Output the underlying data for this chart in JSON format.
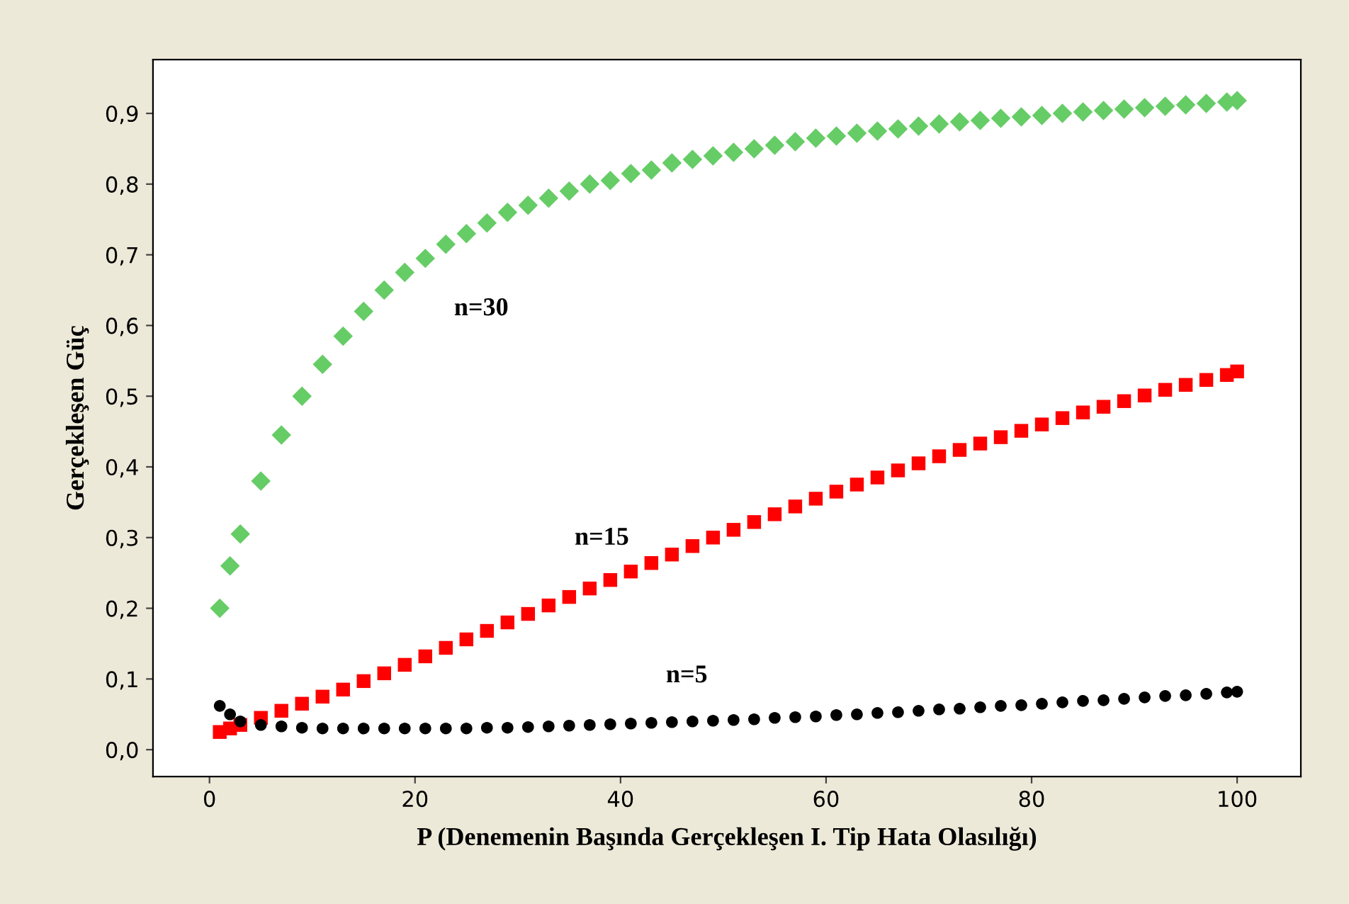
{
  "chart_data": {
    "type": "scatter",
    "xlabel": "P (Denemenin Başında Gerçekleşen I. Tip Hata Olasılığı)",
    "ylabel": "Gerçekleşen Güç",
    "x": [
      1,
      2,
      3,
      5,
      7,
      9,
      11,
      13,
      15,
      17,
      19,
      21,
      23,
      25,
      27,
      29,
      31,
      33,
      35,
      37,
      39,
      41,
      43,
      45,
      47,
      49,
      51,
      53,
      55,
      57,
      59,
      61,
      63,
      65,
      67,
      69,
      71,
      73,
      75,
      77,
      79,
      81,
      83,
      85,
      87,
      89,
      91,
      93,
      95,
      97,
      99,
      100
    ],
    "series": [
      {
        "name": "n=30",
        "color": "#66cc66",
        "marker": "diamond",
        "values": [
          0.2,
          0.26,
          0.305,
          0.38,
          0.445,
          0.5,
          0.545,
          0.585,
          0.62,
          0.65,
          0.675,
          0.695,
          0.715,
          0.73,
          0.745,
          0.76,
          0.77,
          0.78,
          0.79,
          0.8,
          0.805,
          0.815,
          0.82,
          0.83,
          0.835,
          0.84,
          0.845,
          0.85,
          0.855,
          0.86,
          0.865,
          0.868,
          0.872,
          0.875,
          0.878,
          0.882,
          0.885,
          0.888,
          0.89,
          0.893,
          0.895,
          0.897,
          0.9,
          0.902,
          0.904,
          0.906,
          0.908,
          0.91,
          0.912,
          0.914,
          0.916,
          0.918
        ]
      },
      {
        "name": "n=15",
        "color": "#ff0000",
        "marker": "square",
        "values": [
          0.025,
          0.03,
          0.035,
          0.045,
          0.055,
          0.065,
          0.075,
          0.085,
          0.097,
          0.108,
          0.12,
          0.132,
          0.144,
          0.156,
          0.168,
          0.18,
          0.192,
          0.204,
          0.216,
          0.228,
          0.24,
          0.252,
          0.264,
          0.276,
          0.288,
          0.3,
          0.311,
          0.322,
          0.333,
          0.344,
          0.355,
          0.365,
          0.375,
          0.385,
          0.395,
          0.405,
          0.415,
          0.424,
          0.433,
          0.442,
          0.451,
          0.46,
          0.469,
          0.477,
          0.485,
          0.493,
          0.501,
          0.509,
          0.516,
          0.523,
          0.53,
          0.535
        ]
      },
      {
        "name": "n=5",
        "color": "#000000",
        "marker": "circle",
        "values": [
          0.062,
          0.05,
          0.04,
          0.035,
          0.033,
          0.031,
          0.03,
          0.03,
          0.03,
          0.03,
          0.03,
          0.03,
          0.03,
          0.03,
          0.031,
          0.031,
          0.032,
          0.033,
          0.034,
          0.035,
          0.036,
          0.037,
          0.038,
          0.039,
          0.04,
          0.041,
          0.042,
          0.043,
          0.045,
          0.046,
          0.047,
          0.049,
          0.05,
          0.052,
          0.053,
          0.055,
          0.057,
          0.058,
          0.06,
          0.062,
          0.063,
          0.065,
          0.067,
          0.069,
          0.07,
          0.072,
          0.074,
          0.076,
          0.077,
          0.079,
          0.081,
          0.082
        ]
      }
    ],
    "xlim": [
      -5.5,
      106.2
    ],
    "ylim": [
      -0.038,
      0.976
    ],
    "xticks": [
      0,
      20,
      40,
      60,
      80,
      100
    ],
    "yticks": [
      {
        "value": 0,
        "label": "0,0"
      },
      {
        "value": 0.1,
        "label": "0,1"
      },
      {
        "value": 0.2,
        "label": "0,2"
      },
      {
        "value": 0.3,
        "label": "0,3"
      },
      {
        "value": 0.4,
        "label": "0,4"
      },
      {
        "value": 0.5,
        "label": "0,5"
      },
      {
        "value": 0.6,
        "label": "0,6"
      },
      {
        "value": 0.7,
        "label": "0,7"
      },
      {
        "value": 0.8,
        "label": "0,8"
      },
      {
        "value": 0.9,
        "label": "0,9"
      }
    ],
    "grid": false,
    "legend": false
  }
}
